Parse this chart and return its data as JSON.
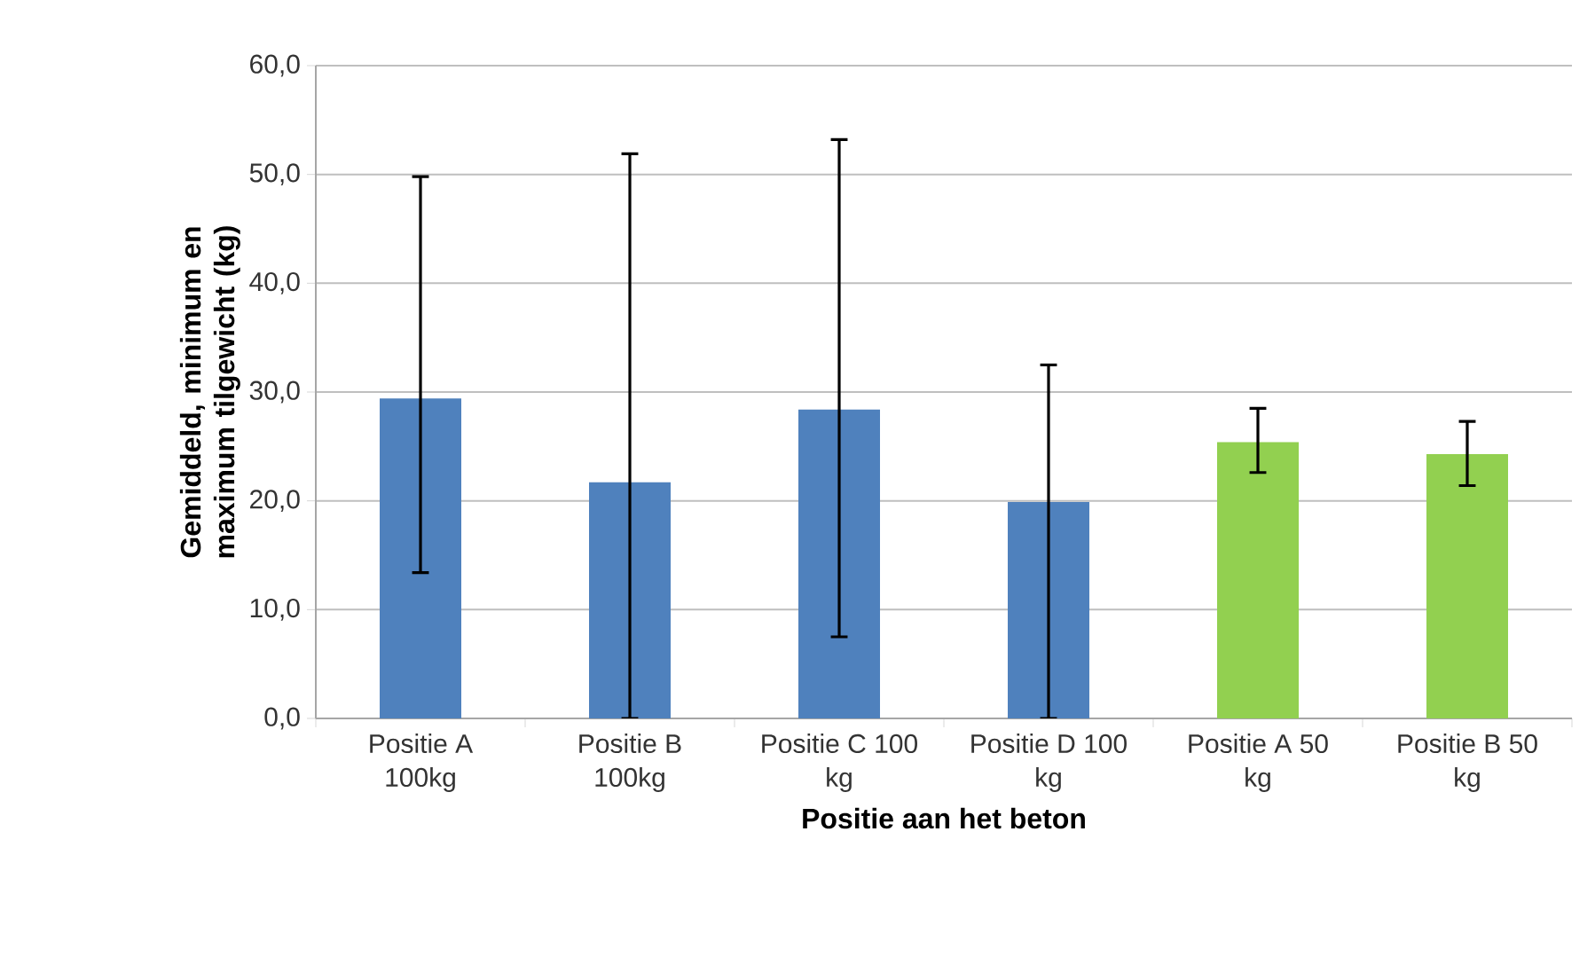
{
  "chart_data": {
    "type": "bar",
    "categories": [
      "Positie A 100kg",
      "Positie B 100kg",
      "Positie C 100 kg",
      "Positie D 100 kg",
      "Positie A 50 kg",
      "Positie B 50 kg"
    ],
    "values": [
      29.4,
      21.7,
      28.4,
      19.9,
      25.4,
      24.3
    ],
    "colors": [
      "#4f81bd",
      "#4f81bd",
      "#4f81bd",
      "#4f81bd",
      "#92d050",
      "#92d050"
    ],
    "errors": [
      [
        13.4,
        49.8
      ],
      [
        0,
        51.9
      ],
      [
        7.5,
        53.2
      ],
      [
        0,
        32.5
      ],
      [
        22.6,
        28.5
      ],
      [
        21.4,
        27.3
      ]
    ],
    "xlabel": "Positie aan het beton",
    "ylabel": "Gemiddeld, minimum en maximum tilgewicht (kg)",
    "ylim": [
      0,
      60
    ],
    "yticks": [
      {
        "value": 0,
        "label": "0,0"
      },
      {
        "value": 10,
        "label": "10,0"
      },
      {
        "value": 20,
        "label": "20,0"
      },
      {
        "value": 30,
        "label": "30,0"
      },
      {
        "value": 40,
        "label": "40,0"
      },
      {
        "value": 50,
        "label": "50,0"
      },
      {
        "value": 60,
        "label": "60,0"
      }
    ],
    "grid": "y"
  }
}
